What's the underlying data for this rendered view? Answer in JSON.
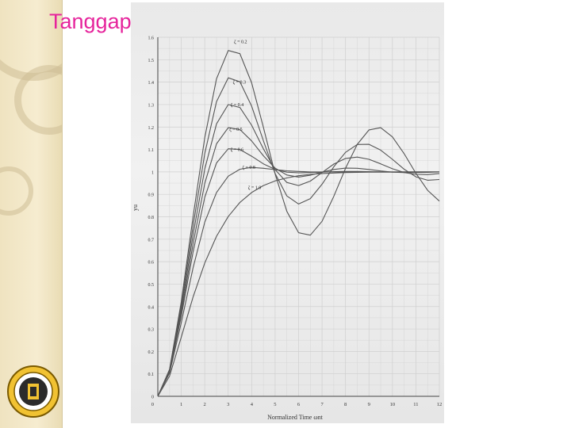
{
  "slide": {
    "title": "Tanggap Tangga Orde Dua"
  },
  "colors": {
    "title": "#e6249c",
    "curve": "#555555",
    "grid": "#cfcfcf",
    "sidebar": "#f3e8c8"
  },
  "logo": {
    "icon": "university-seal-icon"
  },
  "chart_data": {
    "type": "line",
    "title": "",
    "xlabel": "Normalized Time ωnt",
    "ylabel": "yu",
    "xlim": [
      0,
      12
    ],
    "ylim": [
      0,
      1.6
    ],
    "xticks": [
      1,
      2,
      3,
      4,
      5,
      6,
      7,
      8,
      9,
      10,
      11,
      12
    ],
    "yticks": [
      0,
      0.1,
      0.2,
      0.3,
      0.4,
      0.5,
      0.6,
      0.7,
      0.8,
      0.9,
      1.0,
      1.1,
      1.2,
      1.3,
      1.4,
      1.5,
      1.6
    ],
    "grid": true,
    "series": [
      {
        "name": "ζ = 0.2",
        "x": [
          0,
          0.5,
          1,
          1.5,
          2,
          2.5,
          3,
          3.5,
          4,
          4.5,
          5,
          5.5,
          6,
          6.5,
          7,
          7.5,
          8,
          8.5,
          9,
          9.5,
          10,
          10.5,
          11,
          11.5,
          12
        ],
        "values": [
          0,
          0.12,
          0.422,
          0.799,
          1.153,
          1.415,
          1.541,
          1.527,
          1.397,
          1.199,
          0.991,
          0.824,
          0.729,
          0.718,
          0.78,
          0.891,
          1.016,
          1.123,
          1.187,
          1.197,
          1.156,
          1.081,
          0.994,
          0.918,
          0.87
        ]
      },
      {
        "name": "ζ = 0.3",
        "x": [
          0,
          0.5,
          1,
          1.5,
          2,
          2.5,
          3,
          3.5,
          4,
          4.5,
          5,
          5.5,
          6,
          6.5,
          7,
          7.5,
          8,
          8.5,
          9,
          9.5,
          10,
          10.5,
          11,
          11.5,
          12
        ],
        "values": [
          0,
          0.117,
          0.405,
          0.758,
          1.082,
          1.313,
          1.419,
          1.402,
          1.293,
          1.139,
          0.993,
          0.893,
          0.857,
          0.881,
          0.945,
          1.023,
          1.087,
          1.122,
          1.123,
          1.097,
          1.056,
          1.012,
          0.978,
          0.963,
          0.966
        ]
      },
      {
        "name": "ζ = 0.4",
        "x": [
          0,
          0.5,
          1,
          1.5,
          2,
          2.5,
          3,
          3.5,
          4,
          4.5,
          5,
          5.5,
          6,
          6.5,
          7,
          7.5,
          8,
          8.5,
          9,
          9.5,
          10,
          10.5,
          11,
          11.5,
          12
        ],
        "values": [
          0,
          0.114,
          0.388,
          0.718,
          1.013,
          1.214,
          1.3,
          1.287,
          1.208,
          1.103,
          1.01,
          0.953,
          0.939,
          0.959,
          0.997,
          1.035,
          1.06,
          1.066,
          1.056,
          1.036,
          1.014,
          0.997,
          0.989,
          0.988,
          0.993
        ]
      },
      {
        "name": "ζ = 0.5",
        "x": [
          0,
          0.5,
          1,
          1.5,
          2,
          2.5,
          3,
          3.5,
          4,
          4.5,
          5,
          5.5,
          6,
          6.5,
          7,
          7.5,
          8,
          8.5,
          9,
          9.5,
          10,
          10.5,
          11,
          11.5,
          12
        ],
        "values": [
          0,
          0.111,
          0.372,
          0.679,
          0.949,
          1.125,
          1.197,
          1.189,
          1.138,
          1.072,
          1.017,
          0.986,
          0.977,
          0.985,
          0.999,
          1.011,
          1.017,
          1.016,
          1.011,
          1.004,
          0.999,
          0.997,
          0.997,
          0.998,
          1.0
        ]
      },
      {
        "name": "ζ = 0.6",
        "x": [
          0,
          0.5,
          1,
          1.5,
          2,
          2.5,
          3,
          3.5,
          4,
          4.5,
          5,
          5.5,
          6,
          6.5,
          7,
          7.5,
          8,
          8.5,
          9,
          9.5,
          10,
          10.5,
          11,
          11.5,
          12
        ],
        "values": [
          0,
          0.109,
          0.357,
          0.642,
          0.887,
          1.04,
          1.103,
          1.1,
          1.07,
          1.036,
          1.011,
          0.999,
          0.996,
          0.997,
          0.999,
          1.001,
          1.002,
          1.002,
          1.001,
          1.0,
          1.0,
          1.0,
          1.0,
          1.0,
          1.0
        ]
      },
      {
        "name": "ζ = 0.8",
        "x": [
          0,
          0.5,
          1,
          1.5,
          2,
          2.5,
          3,
          3.5,
          4,
          4.5,
          5,
          5.5,
          6,
          6.5,
          7,
          7.5,
          8,
          8.5,
          9,
          9.5,
          10,
          10.5,
          11,
          11.5,
          12
        ],
        "values": [
          0,
          0.104,
          0.328,
          0.572,
          0.776,
          0.908,
          0.981,
          1.012,
          1.02,
          1.016,
          1.01,
          1.005,
          1.002,
          1.0,
          1.0,
          1.0,
          1.0,
          1.0,
          1.0,
          1.0,
          1.0,
          1.0,
          1.0,
          1.0,
          1.0
        ]
      },
      {
        "name": "ζ = 1.0",
        "x": [
          0,
          0.5,
          1,
          1.5,
          2,
          2.5,
          3,
          3.5,
          4,
          4.5,
          5,
          5.5,
          6,
          6.5,
          7,
          7.5,
          8,
          8.5,
          9,
          9.5,
          10,
          10.5,
          11,
          11.5,
          12
        ],
        "values": [
          0,
          0.09,
          0.264,
          0.442,
          0.594,
          0.713,
          0.801,
          0.864,
          0.908,
          0.939,
          0.96,
          0.973,
          0.983,
          0.989,
          0.993,
          0.995,
          0.997,
          0.998,
          0.999,
          0.999,
          0.999,
          1.0,
          1.0,
          1.0,
          1.0
        ]
      }
    ]
  }
}
